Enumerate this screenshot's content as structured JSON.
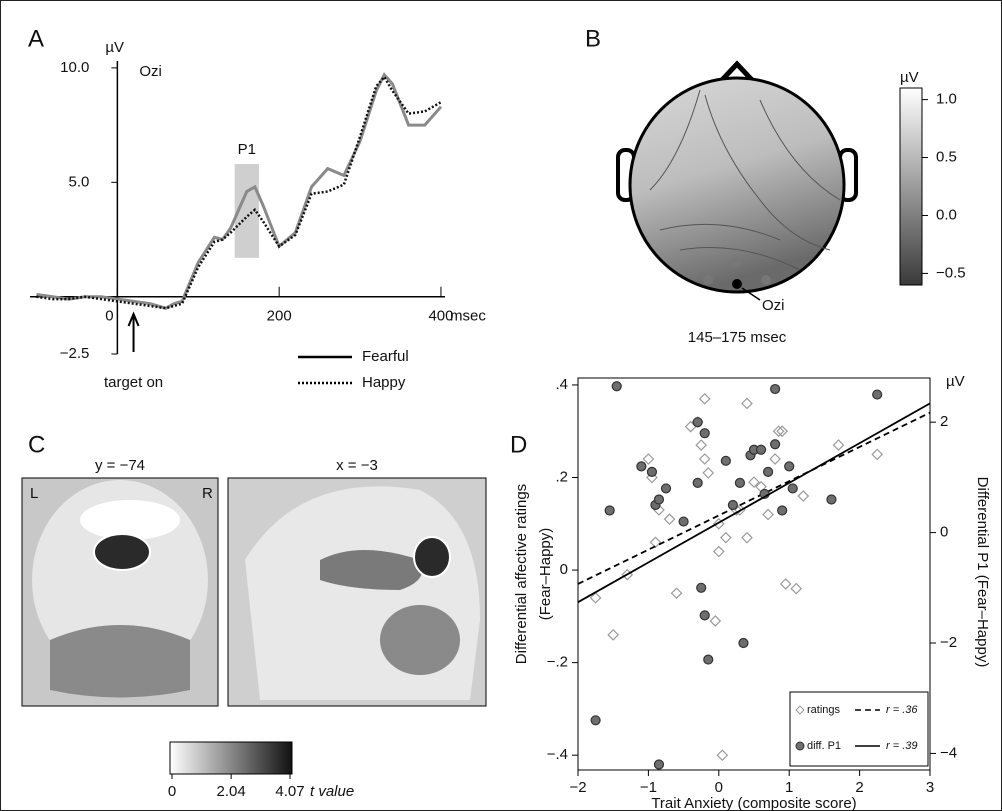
{
  "chart_data": [
    {
      "type": "line",
      "panel": "A",
      "y_unit": "µV",
      "channel": "Ozi",
      "x_unit": "msec",
      "annotation": "target on",
      "shade_label": "P1",
      "shade": {
        "x": [
          145,
          175
        ],
        "y": [
          1.7,
          5.8
        ]
      },
      "xlim": [
        -108,
        405
      ],
      "ylim": [
        -2.5,
        10.3
      ],
      "xticks": [
        0,
        200,
        400
      ],
      "yticks": [
        {
          "value": 10,
          "label": "10.0"
        },
        {
          "value": 5,
          "label": "5.0"
        },
        {
          "value": -2.5,
          "label": "−2.5"
        }
      ],
      "x": [
        -100,
        -80,
        -60,
        -40,
        -20,
        0,
        20,
        40,
        60,
        70,
        80,
        100,
        120,
        130,
        140,
        160,
        170,
        180,
        200,
        220,
        240,
        260,
        280,
        300,
        320,
        330,
        340,
        360,
        380,
        400
      ],
      "series": [
        {
          "name": "Fearful",
          "color": "#8a8a8a",
          "dash": "none",
          "values": [
            0.1,
            0.0,
            -0.1,
            0.0,
            0.0,
            -0.1,
            -0.2,
            -0.3,
            -0.5,
            -0.3,
            -0.2,
            1.5,
            2.6,
            2.5,
            3.0,
            4.6,
            4.8,
            4.0,
            2.2,
            2.8,
            4.8,
            5.6,
            5.3,
            6.8,
            9.0,
            9.7,
            9.3,
            7.5,
            7.5,
            8.3
          ]
        },
        {
          "name": "Happy",
          "color": "#111111",
          "dash": "2 2",
          "values": [
            0.0,
            -0.1,
            -0.1,
            0.0,
            -0.1,
            -0.2,
            -0.3,
            -0.4,
            -0.5,
            -0.4,
            -0.3,
            1.3,
            2.4,
            2.5,
            2.8,
            3.5,
            3.8,
            3.3,
            2.2,
            2.7,
            4.5,
            4.6,
            4.9,
            7.0,
            9.2,
            9.6,
            9.0,
            8.0,
            8.1,
            8.5
          ]
        }
      ]
    },
    {
      "type": "topomap",
      "panel": "B",
      "unit": "µV",
      "electrode": "Ozi",
      "window": "145–175 msec",
      "clim": [
        -0.6,
        1.1
      ],
      "cticks": [
        {
          "value": 1,
          "label": "1.0"
        },
        0.5,
        {
          "value": 0,
          "label": "0.0"
        },
        {
          "value": -0.5,
          "label": "−0.5"
        }
      ]
    },
    {
      "type": "brain",
      "panel": "C",
      "slices": [
        "y = −74",
        "x = −3"
      ],
      "left": "L",
      "right": "R",
      "unit": "t value",
      "clim": [
        0,
        4.07
      ],
      "cticks": [
        0,
        2.04,
        4.07
      ]
    },
    {
      "type": "scatter",
      "panel": "D",
      "x_label": "Trait Anxiety (composite score)",
      "y_label": [
        "Differential affective ratings",
        "(Fear–Happy)"
      ],
      "y2_label": "Differential P1 (Fear–Happy)",
      "y2_unit": "µV",
      "xlim": [
        -2,
        3
      ],
      "ylim": [
        -0.432,
        0.415
      ],
      "y2lim": [
        -4.3,
        2.8
      ],
      "xticks": [
        {
          "value": -2,
          "label": "−2"
        },
        {
          "value": -1,
          "label": "−1"
        },
        0,
        1,
        2,
        3
      ],
      "yticks": [
        {
          "value": 0.4,
          "label": ".4"
        },
        {
          "value": 0.2,
          "label": ".2"
        },
        0,
        {
          "value": -0.2,
          "label": "−.2"
        },
        {
          "value": -0.4,
          "label": "−.4"
        }
      ],
      "y2ticks": [
        2,
        0,
        {
          "value": -2,
          "label": "−2"
        },
        {
          "value": -4,
          "label": "−4"
        }
      ],
      "series": [
        {
          "name": "ratings",
          "marker": "diamond",
          "color": "#9a9a9a",
          "r_label": "r = .36",
          "dash": "6 4",
          "x": [
            -1.75,
            -1.5,
            -1.3,
            -1.0,
            -0.95,
            -0.9,
            -0.85,
            -0.7,
            -0.6,
            -0.4,
            -0.3,
            -0.25,
            -0.2,
            -0.15,
            -0.05,
            0.0,
            0.0,
            0.05,
            0.1,
            0.25,
            0.3,
            0.4,
            0.5,
            0.6,
            0.7,
            0.8,
            0.85,
            0.9,
            0.95,
            1.1,
            1.2,
            1.7,
            2.25,
            0.4,
            -0.2
          ],
          "values": [
            -0.06,
            -0.14,
            -0.01,
            0.24,
            0.2,
            0.06,
            0.13,
            0.11,
            -0.05,
            0.31,
            0.32,
            0.27,
            0.24,
            0.21,
            -0.11,
            0.1,
            0.04,
            -0.4,
            0.07,
            0.13,
            0.13,
            0.36,
            0.19,
            0.18,
            0.12,
            0.24,
            0.3,
            0.3,
            -0.03,
            -0.04,
            0.16,
            0.27,
            0.25,
            0.07,
            0.37
          ],
          "fit": {
            "x": [
              -2,
              3
            ],
            "y": [
              -0.03,
              0.34
            ]
          }
        },
        {
          "name": "diff. P1",
          "marker": "circle",
          "color": "#6e6e6e",
          "r_label": "r = .39",
          "dash": "none",
          "axis": "y2",
          "x": [
            -1.75,
            -1.45,
            -1.1,
            -0.95,
            -0.9,
            -0.85,
            -0.75,
            -0.5,
            -0.85,
            -0.3,
            -0.25,
            -0.2,
            -0.15,
            -0.2,
            -0.3,
            0.1,
            0.2,
            0.3,
            0.35,
            0.45,
            0.5,
            0.6,
            0.7,
            0.8,
            0.8,
            0.9,
            1.0,
            1.05,
            1.6,
            2.25,
            -1.55,
            0.65
          ],
          "values": [
            -3.4,
            2.65,
            1.2,
            1.1,
            0.5,
            0.6,
            0.8,
            0.2,
            -4.2,
            0.9,
            -1.0,
            -1.5,
            -2.3,
            1.8,
            2.0,
            1.3,
            0.5,
            0.9,
            -2.0,
            1.4,
            1.5,
            1.5,
            1.1,
            1.6,
            2.6,
            0.4,
            1.2,
            0.8,
            0.6,
            2.5,
            0.4,
            0.7
          ],
          "fit": {
            "x": [
              -2,
              3
            ],
            "y": [
              -1.26,
              2.34
            ]
          }
        }
      ]
    }
  ]
}
